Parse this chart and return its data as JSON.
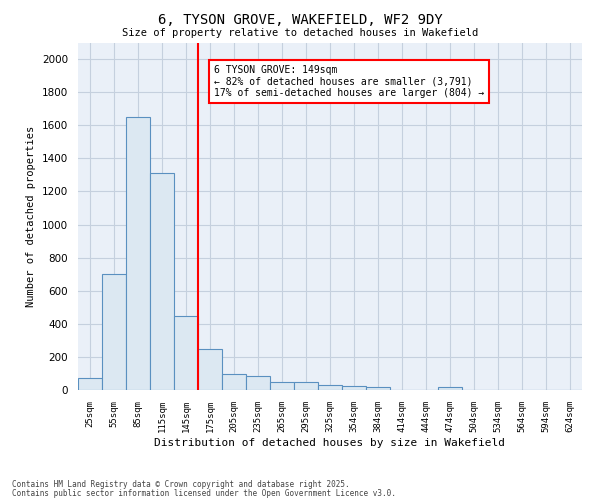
{
  "title": "6, TYSON GROVE, WAKEFIELD, WF2 9DY",
  "subtitle": "Size of property relative to detached houses in Wakefield",
  "xlabel": "Distribution of detached houses by size in Wakefield",
  "ylabel": "Number of detached properties",
  "bin_labels": [
    "25sqm",
    "55sqm",
    "85sqm",
    "115sqm",
    "145sqm",
    "175sqm",
    "205sqm",
    "235sqm",
    "265sqm",
    "295sqm",
    "325sqm",
    "354sqm",
    "384sqm",
    "414sqm",
    "444sqm",
    "474sqm",
    "504sqm",
    "534sqm",
    "564sqm",
    "594sqm",
    "624sqm"
  ],
  "bar_heights": [
    75,
    700,
    1650,
    1310,
    450,
    250,
    95,
    85,
    50,
    50,
    30,
    25,
    20,
    0,
    0,
    20,
    0,
    0,
    0,
    0,
    0
  ],
  "bar_color": "#dce8f2",
  "bar_edge_color": "#5a90c0",
  "red_line_x": 4,
  "ylim": [
    0,
    2100
  ],
  "yticks": [
    0,
    200,
    400,
    600,
    800,
    1000,
    1200,
    1400,
    1600,
    1800,
    2000
  ],
  "annotation_box_text": "6 TYSON GROVE: 149sqm\n← 82% of detached houses are smaller (3,791)\n17% of semi-detached houses are larger (804) →",
  "footnote1": "Contains HM Land Registry data © Crown copyright and database right 2025.",
  "footnote2": "Contains public sector information licensed under the Open Government Licence v3.0.",
  "background_color": "#ffffff",
  "plot_bg_color": "#eaf0f8",
  "grid_color": "#c5d0de"
}
